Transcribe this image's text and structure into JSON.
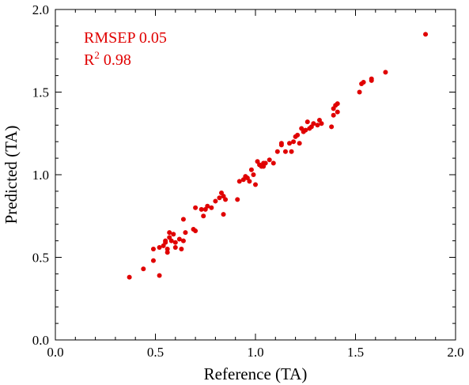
{
  "chart_data": {
    "type": "scatter",
    "xlabel": "Reference (TA)",
    "ylabel": "Predicted (TA)",
    "xlim": [
      0.0,
      2.0
    ],
    "ylim": [
      0.0,
      2.0
    ],
    "xticks": [
      "0.0",
      "0.5",
      "1.0",
      "1.5",
      "2.0"
    ],
    "yticks": [
      "0.0",
      "0.5",
      "1.0",
      "1.5",
      "2.0"
    ],
    "grid": false,
    "annotations": {
      "rmsep": "RMSEP 0.05",
      "r2_base": "R",
      "r2_exp": "2",
      "r2_value": "0.98"
    },
    "colors": {
      "points": "#e00000",
      "annotation": "#e00000",
      "axes": "#000000"
    },
    "points": [
      [
        0.37,
        0.38
      ],
      [
        0.44,
        0.43
      ],
      [
        0.49,
        0.48
      ],
      [
        0.49,
        0.55
      ],
      [
        0.52,
        0.56
      ],
      [
        0.52,
        0.39
      ],
      [
        0.54,
        0.57
      ],
      [
        0.55,
        0.59
      ],
      [
        0.55,
        0.6
      ],
      [
        0.56,
        0.53
      ],
      [
        0.56,
        0.55
      ],
      [
        0.57,
        0.62
      ],
      [
        0.57,
        0.65
      ],
      [
        0.58,
        0.6
      ],
      [
        0.59,
        0.64
      ],
      [
        0.6,
        0.59
      ],
      [
        0.6,
        0.56
      ],
      [
        0.62,
        0.61
      ],
      [
        0.63,
        0.55
      ],
      [
        0.64,
        0.6
      ],
      [
        0.64,
        0.73
      ],
      [
        0.65,
        0.65
      ],
      [
        0.69,
        0.67
      ],
      [
        0.7,
        0.66
      ],
      [
        0.7,
        0.8
      ],
      [
        0.73,
        0.79
      ],
      [
        0.74,
        0.75
      ],
      [
        0.75,
        0.79
      ],
      [
        0.76,
        0.81
      ],
      [
        0.78,
        0.8
      ],
      [
        0.8,
        0.84
      ],
      [
        0.82,
        0.86
      ],
      [
        0.83,
        0.89
      ],
      [
        0.84,
        0.76
      ],
      [
        0.84,
        0.87
      ],
      [
        0.85,
        0.85
      ],
      [
        0.91,
        0.85
      ],
      [
        0.92,
        0.96
      ],
      [
        0.94,
        0.97
      ],
      [
        0.95,
        0.99
      ],
      [
        0.96,
        0.98
      ],
      [
        0.97,
        0.96
      ],
      [
        0.98,
        1.03
      ],
      [
        0.99,
        1.0
      ],
      [
        1.0,
        0.94
      ],
      [
        1.01,
        1.08
      ],
      [
        1.02,
        1.06
      ],
      [
        1.03,
        1.05
      ],
      [
        1.04,
        1.07
      ],
      [
        1.04,
        1.05
      ],
      [
        1.05,
        1.07
      ],
      [
        1.07,
        1.09
      ],
      [
        1.09,
        1.07
      ],
      [
        1.11,
        1.14
      ],
      [
        1.13,
        1.18
      ],
      [
        1.13,
        1.19
      ],
      [
        1.15,
        1.14
      ],
      [
        1.17,
        1.19
      ],
      [
        1.18,
        1.14
      ],
      [
        1.19,
        1.2
      ],
      [
        1.2,
        1.23
      ],
      [
        1.21,
        1.24
      ],
      [
        1.22,
        1.19
      ],
      [
        1.23,
        1.28
      ],
      [
        1.24,
        1.26
      ],
      [
        1.25,
        1.27
      ],
      [
        1.26,
        1.32
      ],
      [
        1.27,
        1.28
      ],
      [
        1.28,
        1.29
      ],
      [
        1.29,
        1.31
      ],
      [
        1.31,
        1.3
      ],
      [
        1.32,
        1.33
      ],
      [
        1.33,
        1.31
      ],
      [
        1.38,
        1.29
      ],
      [
        1.39,
        1.36
      ],
      [
        1.39,
        1.4
      ],
      [
        1.4,
        1.42
      ],
      [
        1.41,
        1.43
      ],
      [
        1.41,
        1.38
      ],
      [
        1.52,
        1.5
      ],
      [
        1.53,
        1.55
      ],
      [
        1.54,
        1.56
      ],
      [
        1.58,
        1.57
      ],
      [
        1.58,
        1.58
      ],
      [
        1.65,
        1.62
      ],
      [
        1.85,
        1.85
      ]
    ]
  }
}
